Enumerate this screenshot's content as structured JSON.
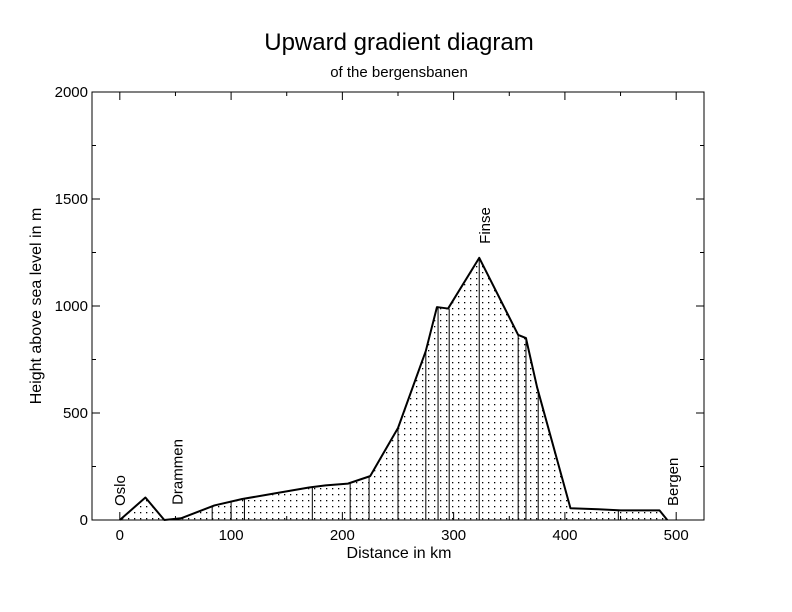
{
  "chart_data": {
    "type": "area",
    "title": "Upward gradient diagram",
    "subtitle": "of the bergensbanen",
    "xlabel": "Distance in km",
    "ylabel": "Height above sea level in m",
    "xlim": [
      -25,
      525
    ],
    "ylim": [
      0,
      2000
    ],
    "xticks": [
      0,
      100,
      200,
      300,
      400,
      500
    ],
    "yticks": [
      0,
      500,
      1000,
      1500,
      2000
    ],
    "grid": false,
    "fill": "dotted",
    "line_color": "#000000",
    "profile": {
      "x": [
        0,
        23,
        40,
        55,
        85,
        110,
        140,
        170,
        185,
        205,
        225,
        250,
        275,
        285,
        295,
        323,
        358,
        365,
        375,
        405,
        430,
        450,
        485,
        492
      ],
      "y": [
        0,
        105,
        0,
        8,
        68,
        98,
        125,
        152,
        162,
        170,
        205,
        430,
        790,
        995,
        988,
        1225,
        865,
        850,
        620,
        55,
        50,
        45,
        45,
        0
      ]
    },
    "markers": [
      {
        "x": 0,
        "y": 0
      },
      {
        "x": 50,
        "y": 5
      },
      {
        "x": 83,
        "y": 65
      },
      {
        "x": 100,
        "y": 90
      },
      {
        "x": 112,
        "y": 100
      },
      {
        "x": 173,
        "y": 155
      },
      {
        "x": 207,
        "y": 172
      },
      {
        "x": 224,
        "y": 205
      },
      {
        "x": 250,
        "y": 430
      },
      {
        "x": 275,
        "y": 790
      },
      {
        "x": 286,
        "y": 995
      },
      {
        "x": 296,
        "y": 988
      },
      {
        "x": 323,
        "y": 1225
      },
      {
        "x": 358,
        "y": 865
      },
      {
        "x": 365,
        "y": 850
      },
      {
        "x": 376,
        "y": 610
      },
      {
        "x": 448,
        "y": 45
      },
      {
        "x": 496,
        "y": 0
      }
    ],
    "stations": [
      {
        "name": "Oslo",
        "x": 0,
        "y": 0
      },
      {
        "name": "Drammen",
        "x": 52,
        "y": 5
      },
      {
        "name": "Finse",
        "x": 328,
        "y": 1225
      },
      {
        "name": "Bergen",
        "x": 497,
        "y": 0
      }
    ]
  }
}
